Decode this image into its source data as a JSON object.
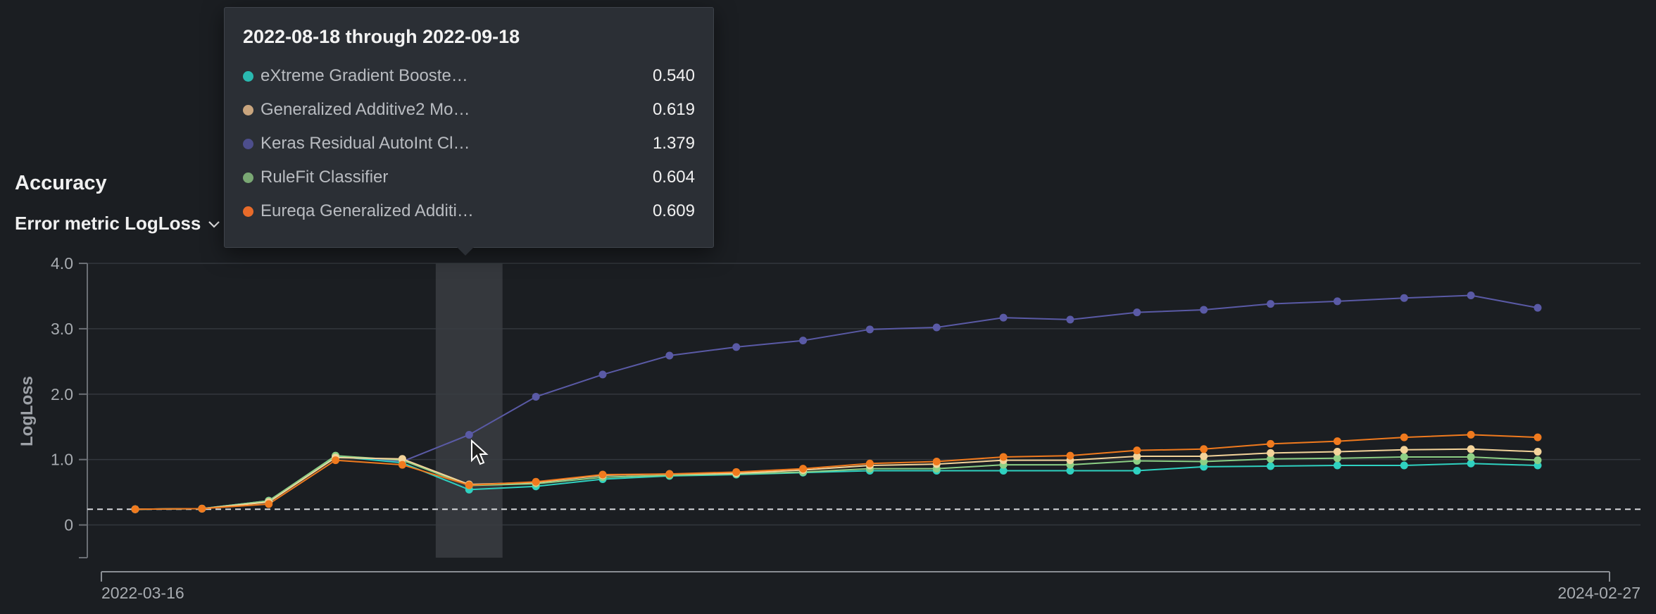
{
  "panel": {
    "title": "Accuracy",
    "metric_label": "Error metric LogLoss"
  },
  "tooltip": {
    "title": "2022-08-18 through 2022-09-18",
    "rows": [
      {
        "name": "eXtreme Gradient Booste…",
        "value": "0.540",
        "color": "#2ab9b0"
      },
      {
        "name": "Generalized Additive2 Mo…",
        "value": "0.619",
        "color": "#c9a57e"
      },
      {
        "name": "Keras Residual AutoInt Cl…",
        "value": "1.379",
        "color": "#4d4e8c"
      },
      {
        "name": "RuleFit Classifier",
        "value": "0.604",
        "color": "#7aa874"
      },
      {
        "name": "Eureqa Generalized Additi…",
        "value": "0.609",
        "color": "#e86b2a"
      }
    ]
  },
  "chart_data": {
    "type": "line",
    "ylabel": "LogLoss",
    "ylim": [
      -0.5,
      4.0
    ],
    "yticks": [
      0,
      1.0,
      2.0,
      3.0,
      4.0
    ],
    "ytick_labels": [
      "0",
      "1.0",
      "2.0",
      "3.0",
      "4.0"
    ],
    "x_start_label": "2022-03-16",
    "x_end_label": "2024-02-27",
    "baseline": 0.24,
    "highlight_index": 5,
    "grid": true,
    "series": [
      {
        "color": "#5a5aa6",
        "values": [
          0.24,
          0.25,
          0.37,
          1.05,
          0.97,
          1.379,
          1.96,
          2.3,
          2.59,
          2.72,
          2.82,
          2.99,
          3.02,
          3.17,
          3.14,
          3.25,
          3.29,
          3.38,
          3.42,
          3.47,
          3.51,
          3.32
        ]
      },
      {
        "color": "#2fd1c0",
        "values": [
          0.24,
          0.25,
          0.37,
          1.05,
          0.95,
          0.54,
          0.59,
          0.7,
          0.75,
          0.77,
          0.8,
          0.83,
          0.83,
          0.83,
          0.83,
          0.83,
          0.89,
          0.9,
          0.91,
          0.91,
          0.94,
          0.91
        ]
      },
      {
        "color": "#8ccf85",
        "values": [
          0.24,
          0.25,
          0.37,
          1.06,
          0.99,
          0.604,
          0.63,
          0.73,
          0.76,
          0.78,
          0.81,
          0.86,
          0.86,
          0.92,
          0.92,
          0.98,
          0.97,
          1.01,
          1.02,
          1.04,
          1.04,
          0.99
        ]
      },
      {
        "color": "#f3d39a",
        "values": [
          0.24,
          0.25,
          0.35,
          1.03,
          1.01,
          0.619,
          0.65,
          0.76,
          0.78,
          0.79,
          0.84,
          0.91,
          0.93,
          0.99,
          0.99,
          1.05,
          1.05,
          1.1,
          1.12,
          1.15,
          1.16,
          1.12
        ]
      },
      {
        "color": "#f07a1e",
        "values": [
          0.24,
          0.25,
          0.32,
          0.99,
          0.92,
          0.609,
          0.66,
          0.77,
          0.78,
          0.81,
          0.86,
          0.94,
          0.97,
          1.04,
          1.06,
          1.14,
          1.16,
          1.24,
          1.28,
          1.34,
          1.38,
          1.34
        ]
      }
    ]
  }
}
